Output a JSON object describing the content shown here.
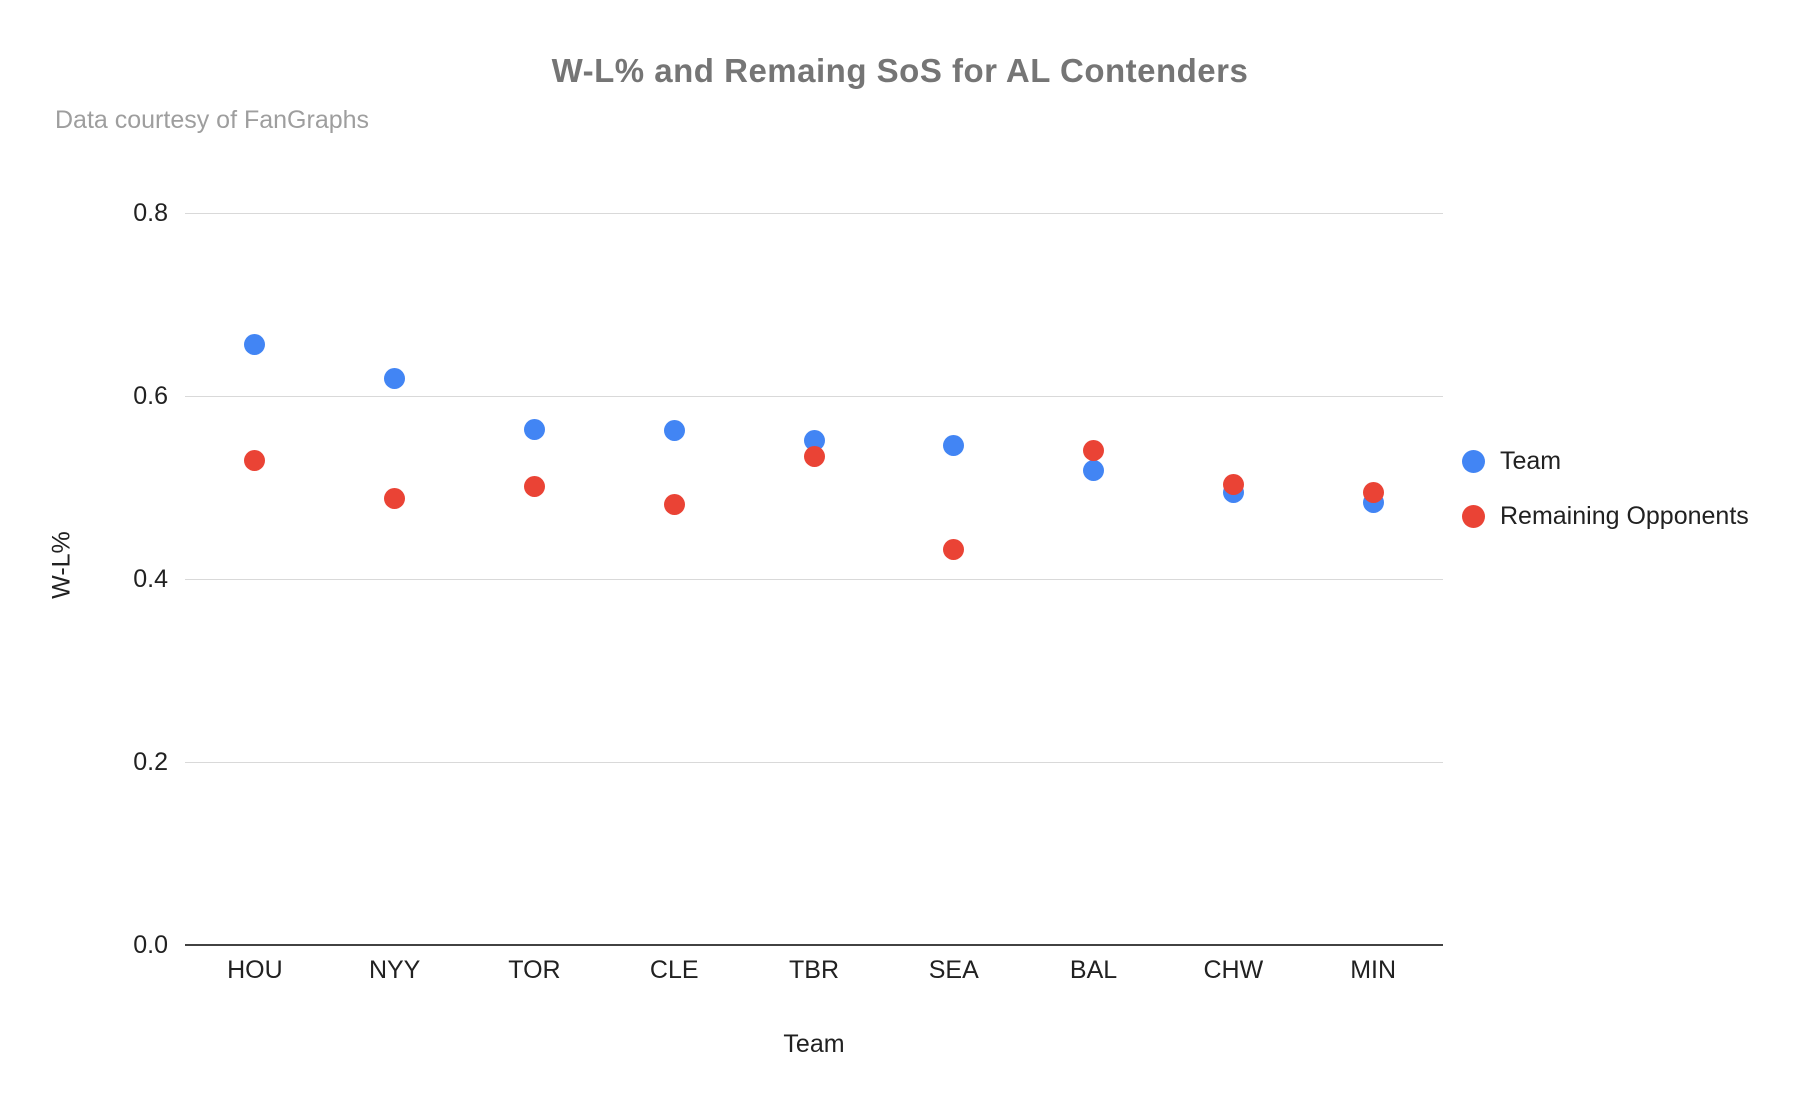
{
  "chart_data": {
    "type": "scatter",
    "title": "W-L% and Remaing SoS for AL Contenders",
    "subtitle": "Data courtesy of FanGraphs",
    "xlabel": "Team",
    "ylabel": "W-L%",
    "categories": [
      "HOU",
      "NYY",
      "TOR",
      "CLE",
      "TBR",
      "SEA",
      "BAL",
      "CHW",
      "MIN"
    ],
    "series": [
      {
        "name": "Team",
        "color": "#4285F4",
        "values": [
          0.656,
          0.619,
          0.563,
          0.562,
          0.551,
          0.546,
          0.519,
          0.495,
          0.484
        ]
      },
      {
        "name": "Remaining Opponents",
        "color": "#EA4335",
        "values": [
          0.529,
          0.488,
          0.501,
          0.481,
          0.534,
          0.432,
          0.54,
          0.503,
          0.494
        ]
      }
    ],
    "y_ticks": [
      0.0,
      0.2,
      0.4,
      0.6,
      0.8
    ],
    "ylim": [
      0.0,
      0.8
    ],
    "grid": true,
    "legend_position": "right"
  },
  "colors": {
    "gridline": "#d9d9d9",
    "axis_line": "#424242",
    "title_text": "#757575",
    "subtitle_text": "#9e9e9e",
    "label_text": "#212121",
    "series_team": "#4285F4",
    "series_opponents": "#EA4335"
  }
}
